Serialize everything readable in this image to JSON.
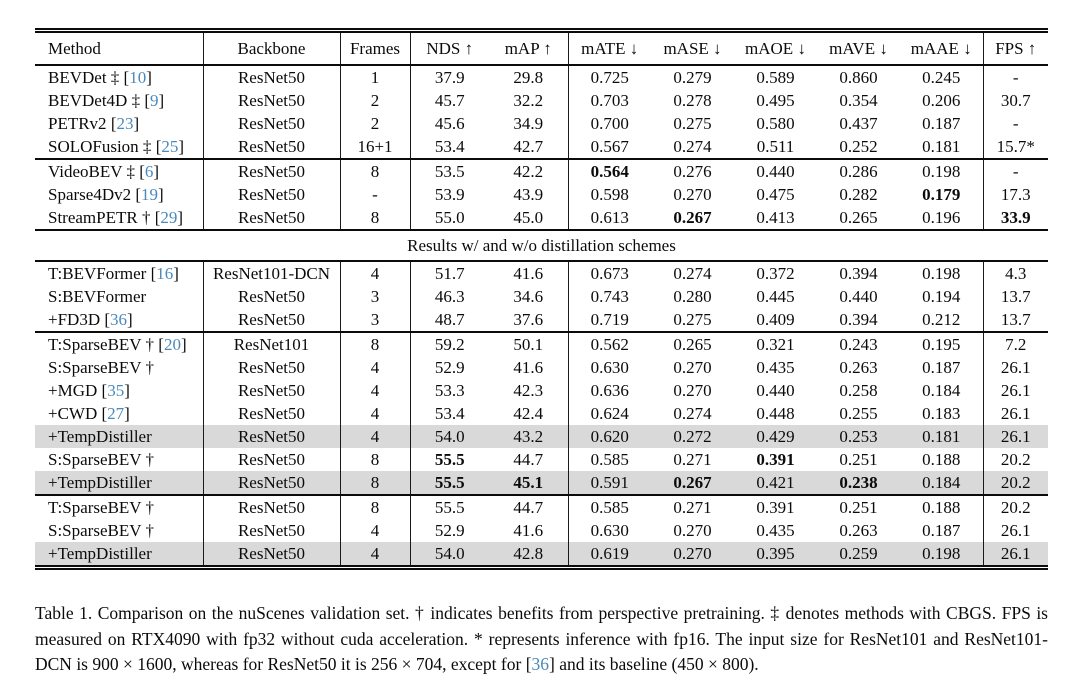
{
  "colors": {
    "citation": "#4a89ba",
    "row_highlight": "#d9d9d9"
  },
  "table": {
    "columns": [
      {
        "label": "Method",
        "arrow": ""
      },
      {
        "label": "Backbone",
        "arrow": ""
      },
      {
        "label": "Frames",
        "arrow": ""
      },
      {
        "label": "NDS",
        "arrow": "↑"
      },
      {
        "label": "mAP",
        "arrow": "↑"
      },
      {
        "label": "mATE",
        "arrow": "↓"
      },
      {
        "label": "mASE",
        "arrow": "↓"
      },
      {
        "label": "mAOE",
        "arrow": "↓"
      },
      {
        "label": "mAVE",
        "arrow": "↓"
      },
      {
        "label": "mAAE",
        "arrow": "↓"
      },
      {
        "label": "FPS",
        "arrow": "↑"
      }
    ],
    "span_row_label": "Results w/ and w/o distillation schemes",
    "sections": [
      {
        "kind": "rows",
        "rows": [
          {
            "method": "BEVDet ‡",
            "cite": "10",
            "backbone": "ResNet50",
            "frames": "1",
            "vals": [
              "37.9",
              "29.8",
              "0.725",
              "0.279",
              "0.589",
              "0.860",
              "0.245",
              "-"
            ],
            "bold": [],
            "hl": false
          },
          {
            "method": "BEVDet4D ‡",
            "cite": "9",
            "backbone": "ResNet50",
            "frames": "2",
            "vals": [
              "45.7",
              "32.2",
              "0.703",
              "0.278",
              "0.495",
              "0.354",
              "0.206",
              "30.7"
            ],
            "bold": [],
            "hl": false
          },
          {
            "method": "PETRv2",
            "cite": "23",
            "backbone": "ResNet50",
            "frames": "2",
            "vals": [
              "45.6",
              "34.9",
              "0.700",
              "0.275",
              "0.580",
              "0.437",
              "0.187",
              "-"
            ],
            "bold": [],
            "hl": false
          },
          {
            "method": "SOLOFusion ‡",
            "cite": "25",
            "backbone": "ResNet50",
            "frames": "16+1",
            "vals": [
              "53.4",
              "42.7",
              "0.567",
              "0.274",
              "0.511",
              "0.252",
              "0.181",
              "15.7*"
            ],
            "bold": [],
            "hl": false
          }
        ]
      },
      {
        "kind": "rows",
        "rows": [
          {
            "method": "VideoBEV ‡",
            "cite": "6",
            "backbone": "ResNet50",
            "frames": "8",
            "vals": [
              "53.5",
              "42.2",
              "0.564",
              "0.276",
              "0.440",
              "0.286",
              "0.198",
              "-"
            ],
            "bold": [
              2
            ],
            "hl": false
          },
          {
            "method": "Sparse4Dv2",
            "cite": "19",
            "backbone": "ResNet50",
            "frames": "-",
            "vals": [
              "53.9",
              "43.9",
              "0.598",
              "0.270",
              "0.475",
              "0.282",
              "0.179",
              "17.3"
            ],
            "bold": [
              6
            ],
            "hl": false
          },
          {
            "method": "StreamPETR †",
            "cite": "29",
            "backbone": "ResNet50",
            "frames": "8",
            "vals": [
              "55.0",
              "45.0",
              "0.613",
              "0.267",
              "0.413",
              "0.265",
              "0.196",
              "33.9"
            ],
            "bold": [
              3,
              7
            ],
            "hl": false
          }
        ]
      },
      {
        "kind": "span"
      },
      {
        "kind": "rows",
        "rows": [
          {
            "method": "T:BEVFormer",
            "cite": "16",
            "backbone": "ResNet101-DCN",
            "frames": "4",
            "vals": [
              "51.7",
              "41.6",
              "0.673",
              "0.274",
              "0.372",
              "0.394",
              "0.198",
              "4.3"
            ],
            "bold": [],
            "hl": false
          },
          {
            "method": "S:BEVFormer",
            "cite": "",
            "backbone": "ResNet50",
            "frames": "3",
            "vals": [
              "46.3",
              "34.6",
              "0.743",
              "0.280",
              "0.445",
              "0.440",
              "0.194",
              "13.7"
            ],
            "bold": [],
            "hl": false
          },
          {
            "method": "+FD3D",
            "cite": "36",
            "backbone": "ResNet50",
            "frames": "3",
            "vals": [
              "48.7",
              "37.6",
              "0.719",
              "0.275",
              "0.409",
              "0.394",
              "0.212",
              "13.7"
            ],
            "bold": [],
            "hl": false
          }
        ]
      },
      {
        "kind": "rows",
        "rows": [
          {
            "method": "T:SparseBEV †",
            "cite": "20",
            "backbone": "ResNet101",
            "frames": "8",
            "vals": [
              "59.2",
              "50.1",
              "0.562",
              "0.265",
              "0.321",
              "0.243",
              "0.195",
              "7.2"
            ],
            "bold": [],
            "hl": false
          },
          {
            "method": "S:SparseBEV †",
            "cite": "",
            "backbone": "ResNet50",
            "frames": "4",
            "vals": [
              "52.9",
              "41.6",
              "0.630",
              "0.270",
              "0.435",
              "0.263",
              "0.187",
              "26.1"
            ],
            "bold": [],
            "hl": false
          },
          {
            "method": "+MGD",
            "cite": "35",
            "backbone": "ResNet50",
            "frames": "4",
            "vals": [
              "53.3",
              "42.3",
              "0.636",
              "0.270",
              "0.440",
              "0.258",
              "0.184",
              "26.1"
            ],
            "bold": [],
            "hl": false
          },
          {
            "method": "+CWD",
            "cite": "27",
            "backbone": "ResNet50",
            "frames": "4",
            "vals": [
              "53.4",
              "42.4",
              "0.624",
              "0.274",
              "0.448",
              "0.255",
              "0.183",
              "26.1"
            ],
            "bold": [],
            "hl": false
          },
          {
            "method": "+TempDistiller",
            "cite": "",
            "backbone": "ResNet50",
            "frames": "4",
            "vals": [
              "54.0",
              "43.2",
              "0.620",
              "0.272",
              "0.429",
              "0.253",
              "0.181",
              "26.1"
            ],
            "bold": [],
            "hl": true
          },
          {
            "method": "S:SparseBEV †",
            "cite": "",
            "backbone": "ResNet50",
            "frames": "8",
            "vals": [
              "55.5",
              "44.7",
              "0.585",
              "0.271",
              "0.391",
              "0.251",
              "0.188",
              "20.2"
            ],
            "bold": [
              0,
              4
            ],
            "hl": false
          },
          {
            "method": "+TempDistiller",
            "cite": "",
            "backbone": "ResNet50",
            "frames": "8",
            "vals": [
              "55.5",
              "45.1",
              "0.591",
              "0.267",
              "0.421",
              "0.238",
              "0.184",
              "20.2"
            ],
            "bold": [
              0,
              1,
              3,
              5
            ],
            "hl": true
          }
        ]
      },
      {
        "kind": "rows",
        "rows": [
          {
            "method": "T:SparseBEV †",
            "cite": "",
            "backbone": "ResNet50",
            "frames": "8",
            "vals": [
              "55.5",
              "44.7",
              "0.585",
              "0.271",
              "0.391",
              "0.251",
              "0.188",
              "20.2"
            ],
            "bold": [],
            "hl": false
          },
          {
            "method": "S:SparseBEV †",
            "cite": "",
            "backbone": "ResNet50",
            "frames": "4",
            "vals": [
              "52.9",
              "41.6",
              "0.630",
              "0.270",
              "0.435",
              "0.263",
              "0.187",
              "26.1"
            ],
            "bold": [],
            "hl": false
          },
          {
            "method": "+TempDistiller",
            "cite": "",
            "backbone": "ResNet50",
            "frames": "4",
            "vals": [
              "54.0",
              "42.8",
              "0.619",
              "0.270",
              "0.395",
              "0.259",
              "0.198",
              "26.1"
            ],
            "bold": [],
            "hl": true
          }
        ]
      }
    ]
  },
  "caption": {
    "before": "Table 1. Comparison on the nuScenes validation set. † indicates benefits from perspective pretraining. ‡ denotes methods with CBGS. FPS is measured on RTX4090 with fp32 without cuda acceleration. * represents inference with fp16. The input size for ResNet101 and ResNet101-DCN is 900 × 1600, whereas for ResNet50 it is 256 × 704, except for ",
    "cite": "36",
    "after": " and its baseline (450 × 800)."
  }
}
